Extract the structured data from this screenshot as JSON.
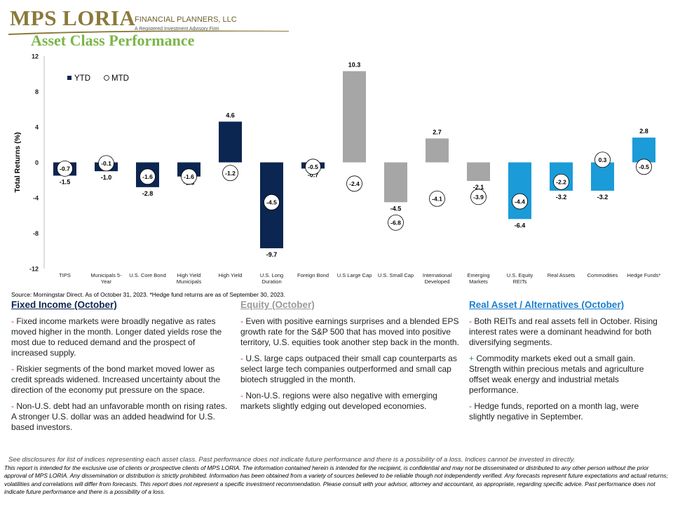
{
  "header": {
    "logo_main": "MPS LORIA",
    "logo_fp": "FINANCIAL PLANNERS, LLC",
    "logo_sub": "A Registered Investment Advisory Firm",
    "title": "Asset Class Performance"
  },
  "colors": {
    "fixed_income": "#0b2650",
    "equity": "#a6a6a6",
    "real_assets": "#1b9bd7",
    "title_green": "#7ab648",
    "logo_gold": "#8a7a3a"
  },
  "chart_data": {
    "type": "bar",
    "ylabel": "Total Returns (%)",
    "ylim": [
      -12,
      12
    ],
    "yticks": [
      -12,
      -8,
      -4,
      0,
      4,
      8,
      12
    ],
    "legend_position": "top-left",
    "grid": false,
    "legend": {
      "ytd": "YTD",
      "mtd": "MTD"
    },
    "categories": [
      "TIPS",
      "Municipals 5-Year",
      "U.S. Core Bond",
      "High Yield Municipals",
      "High Yield",
      "U.S. Long Duration",
      "Foreign Bond",
      "U.S Large Cap",
      "U.S. Small Cap",
      "International Developed",
      "Emerging Markets",
      "U.S. Equity REITs",
      "Real Assets",
      "Commodities",
      "Hedge Funds*"
    ],
    "category_lines": [
      [
        "TIPS"
      ],
      [
        "Municipals 5-",
        "Year"
      ],
      [
        "U.S. Core Bond"
      ],
      [
        "High Yield",
        "Municipals"
      ],
      [
        "High Yield"
      ],
      [
        "U.S. Long",
        "Duration"
      ],
      [
        "Foreign Bond"
      ],
      [
        "U.S Large Cap"
      ],
      [
        "U.S. Small Cap"
      ],
      [
        "International",
        "Developed"
      ],
      [
        "Emerging",
        "Markets"
      ],
      [
        "U.S. Equity",
        "REITs"
      ],
      [
        "Real Assets"
      ],
      [
        "Commodities"
      ],
      [
        "Hedge Funds*"
      ]
    ],
    "groups": [
      "fixed_income",
      "fixed_income",
      "fixed_income",
      "fixed_income",
      "fixed_income",
      "fixed_income",
      "fixed_income",
      "equity",
      "equity",
      "equity",
      "equity",
      "real_assets",
      "real_assets",
      "real_assets",
      "real_assets"
    ],
    "series": [
      {
        "name": "YTD",
        "values": [
          -1.5,
          -1.0,
          -2.8,
          -1.6,
          4.6,
          -9.7,
          -0.7,
          10.3,
          -4.5,
          2.7,
          -2.1,
          -6.4,
          -3.2,
          -3.2,
          2.8
        ]
      },
      {
        "name": "MTD",
        "values": [
          -0.7,
          -0.1,
          -1.6,
          -1.6,
          -1.2,
          -4.5,
          -0.5,
          -2.4,
          -6.8,
          -4.1,
          -3.9,
          -4.4,
          -2.2,
          0.3,
          -0.5
        ]
      }
    ]
  },
  "source_note": "Source: Morningstar Direct. As of October 31, 2023. *Hedge fund returns are as of September 30, 2023.",
  "columns": [
    {
      "heading": "Fixed Income (October)",
      "heading_color": "#0b2650",
      "bullets": [
        {
          "mark": "-",
          "text": " Fixed income markets were broadly negative as rates moved higher in the month. Longer dated yields rose the most due to reduced demand and the prospect of increased supply."
        },
        {
          "mark": "-",
          "text": " Riskier segments of the bond market moved lower as credit spreads widened. Increased uncertainty about the direction of the economy put pressure on the space."
        },
        {
          "mark": "-",
          "text": " Non-U.S. debt had an unfavorable month on rising rates. A stronger U.S. dollar was an added headwind for U.S. based investors."
        }
      ]
    },
    {
      "heading": "Equity (October)",
      "heading_color": "#9a9a9a",
      "bullets": [
        {
          "mark": "-",
          "text": " Even with positive earnings surprises and a blended EPS growth rate for the S&P 500 that has moved into positive territory, U.S. equities took another step back in the month."
        },
        {
          "mark": "-",
          "text": " U.S. large caps outpaced their small cap counterparts as select large tech companies outperformed and small cap biotech struggled in the month."
        },
        {
          "mark": "-",
          "text": " Non-U.S. regions were also negative with emerging markets slightly edging out developed economies."
        }
      ]
    },
    {
      "heading": "Real Asset / Alternatives (October)",
      "heading_color": "#1b7fd0",
      "bullets": [
        {
          "mark": "-",
          "text": " Both REITs and real assets fell in October. Rising interest rates were a dominant headwind for both diversifying segments."
        },
        {
          "mark": "+",
          "text": " Commodity markets eked out a small gain. Strength within precious metals and agriculture offset weak energy and industrial metals performance."
        },
        {
          "mark": "-",
          "text": " Hedge funds, reported on a month lag, were slightly negative in September."
        }
      ]
    }
  ],
  "disclosure": "See disclosures for list of indices representing each asset class. Past performance does not indicate future performance and there is a possibility of a loss. Indices cannot be invested in directly.",
  "legal": "This report is intended for the exclusive use of clients or prospective clients of MPS LORIA. The information contained herein is intended for the recipient, is confidential and may not be disseminated or distributed to any other person without the prior approval of MPS LORIA. Any dissemination or distribution is strictly prohibited. Information has been obtained from a variety of sources believed to be reliable though not independently verified. Any forecasts represent future expectations and actual returns; volatilities and correlations will differ from forecasts. This report does not represent a specific investment recommendation. Please consult with your advisor, attorney and accountant, as appropriate, regarding specific advice. Past performance does not indicate future performance and there is a possibility of a loss."
}
